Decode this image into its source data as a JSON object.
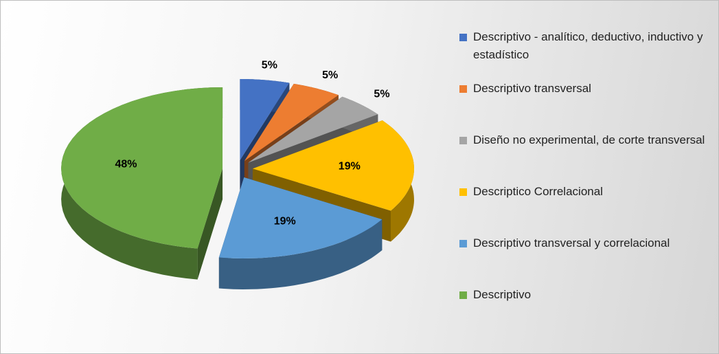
{
  "chart_data": {
    "type": "pie",
    "categories": [
      "Descriptivo - analítico, deductivo, inductivo y estadístico",
      "Descriptivo transversal",
      "Diseño no experimental, de corte transversal",
      "Descriptico Correlacional",
      "Descriptivo transversal y correlacional",
      "Descriptivo"
    ],
    "values": [
      5,
      5,
      5,
      19,
      19,
      48
    ],
    "value_labels": [
      "5%",
      "5%",
      "5%",
      "19%",
      "19%",
      "48%"
    ],
    "colors": [
      "#4472c4",
      "#ed7d31",
      "#a5a5a5",
      "#ffc000",
      "#5b9bd5",
      "#70ad47"
    ],
    "legend": "right"
  }
}
